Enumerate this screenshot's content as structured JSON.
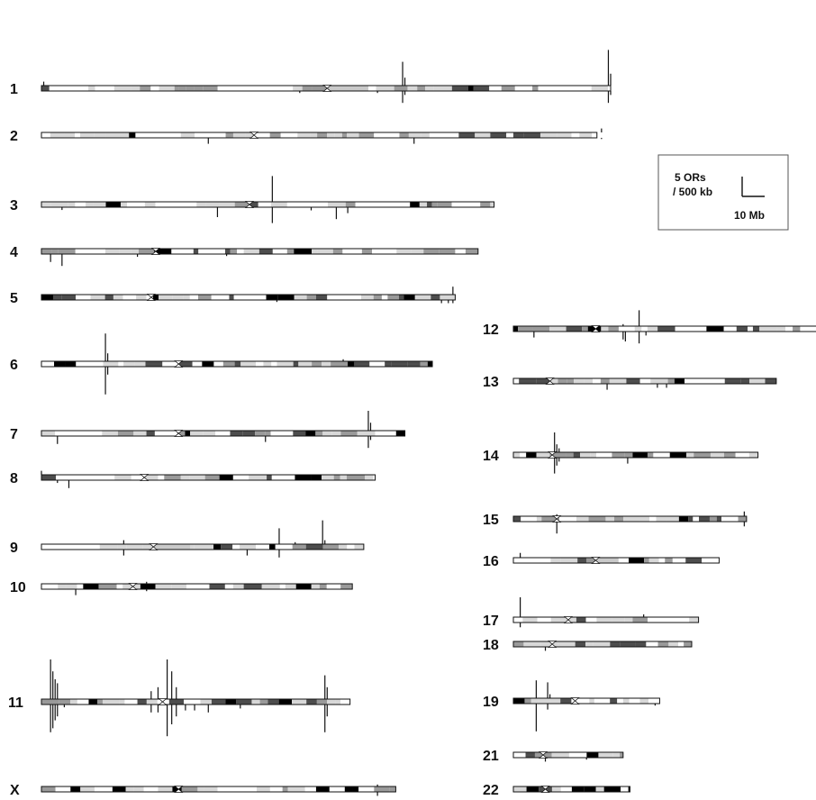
{
  "legend": {
    "line1": "5 ORs",
    "line2": "/ 500 kb",
    "scale_label": "10 Mb"
  },
  "chromosomes": [
    {
      "label": "1",
      "length_mb": 249,
      "centromere_mb": 125,
      "het_mb": [
        125,
        143
      ],
      "spikes": [
        {
          "pos_mb": 1,
          "up": 1,
          "down": 0
        },
        {
          "pos_mb": 113,
          "up": 0,
          "down": 0.5
        },
        {
          "pos_mb": 147,
          "up": 0,
          "down": 0.5
        },
        {
          "pos_mb": 158,
          "up": 6,
          "down": 3
        },
        {
          "pos_mb": 159,
          "up": 2,
          "down": 1
        },
        {
          "pos_mb": 248,
          "up": 9,
          "down": 3
        },
        {
          "pos_mb": 249,
          "up": 3,
          "down": 1
        }
      ]
    },
    {
      "label": "2",
      "length_mb": 243,
      "centromere_mb": 93,
      "het_mb": [],
      "spikes": [
        {
          "pos_mb": 73,
          "up": 0,
          "down": 1.5
        },
        {
          "pos_mb": 163,
          "up": 0,
          "down": 1.5
        },
        {
          "pos_mb": 245,
          "up": 1,
          "down": 0.3
        }
      ]
    },
    {
      "label": "3",
      "length_mb": 198,
      "centromere_mb": 91,
      "het_mb": [],
      "spikes": [
        {
          "pos_mb": 9,
          "up": 0,
          "down": 0.7
        },
        {
          "pos_mb": 77,
          "up": 0,
          "down": 2.5
        },
        {
          "pos_mb": 101,
          "up": 6.5,
          "down": 4
        },
        {
          "pos_mb": 118,
          "up": 0,
          "down": 0.8
        },
        {
          "pos_mb": 129,
          "up": 0,
          "down": 3
        },
        {
          "pos_mb": 134,
          "up": 0,
          "down": 1.5
        }
      ]
    },
    {
      "label": "4",
      "length_mb": 191,
      "centromere_mb": 50,
      "het_mb": [],
      "spikes": [
        {
          "pos_mb": 4,
          "up": 0,
          "down": 2
        },
        {
          "pos_mb": 9,
          "up": 0,
          "down": 3
        },
        {
          "pos_mb": 42,
          "up": 0,
          "down": 0.7
        },
        {
          "pos_mb": 81,
          "up": 0,
          "down": 0.5
        }
      ]
    },
    {
      "label": "5",
      "length_mb": 181,
      "centromere_mb": 48,
      "het_mb": [],
      "spikes": [
        {
          "pos_mb": 103,
          "up": 0,
          "down": 0.5
        },
        {
          "pos_mb": 175,
          "up": 0,
          "down": 0.8
        },
        {
          "pos_mb": 178,
          "up": 0,
          "down": 0.8
        },
        {
          "pos_mb": 180,
          "up": 2,
          "down": 0.8
        }
      ]
    },
    {
      "label": "6",
      "length_mb": 171,
      "centromere_mb": 60,
      "het_mb": [],
      "spikes": [
        {
          "pos_mb": 28,
          "up": 7,
          "down": 7
        },
        {
          "pos_mb": 29,
          "up": 2,
          "down": 2
        },
        {
          "pos_mb": 132,
          "up": 0.5,
          "down": 0
        }
      ]
    },
    {
      "label": "7",
      "length_mb": 159,
      "centromere_mb": 60,
      "het_mb": [],
      "spikes": [
        {
          "pos_mb": 7,
          "up": 0,
          "down": 2
        },
        {
          "pos_mb": 98,
          "up": 0,
          "down": 1.5
        },
        {
          "pos_mb": 143,
          "up": 5,
          "down": 3
        },
        {
          "pos_mb": 144,
          "up": 2,
          "down": 1
        }
      ]
    },
    {
      "label": "8",
      "length_mb": 146,
      "centromere_mb": 45,
      "het_mb": [],
      "spikes": [
        {
          "pos_mb": 0,
          "up": 1,
          "down": 0
        },
        {
          "pos_mb": 7,
          "up": 0,
          "down": 0.7
        },
        {
          "pos_mb": 12,
          "up": 0,
          "down": 2
        }
      ]
    },
    {
      "label": "9",
      "length_mb": 141,
      "centromere_mb": 49,
      "het_mb": [
        49,
        65
      ],
      "spikes": [
        {
          "pos_mb": 36,
          "up": 1,
          "down": 1.5
        },
        {
          "pos_mb": 90,
          "up": 0,
          "down": 1.5
        },
        {
          "pos_mb": 104,
          "up": 4,
          "down": 2
        },
        {
          "pos_mb": 111,
          "up": 0.5,
          "down": 0
        },
        {
          "pos_mb": 123,
          "up": 6,
          "down": 0
        },
        {
          "pos_mb": 124,
          "up": 1,
          "down": 0
        }
      ]
    },
    {
      "label": "10",
      "length_mb": 136,
      "centromere_mb": 40,
      "het_mb": [],
      "spikes": [
        {
          "pos_mb": 15,
          "up": 0,
          "down": 1.5
        },
        {
          "pos_mb": 46,
          "up": 0.5,
          "down": 0.5
        }
      ]
    },
    {
      "label": "11",
      "length_mb": 135,
      "centromere_mb": 53,
      "het_mb": [],
      "spikes": [
        {
          "pos_mb": 4,
          "up": 10,
          "down": 7
        },
        {
          "pos_mb": 5,
          "up": 7,
          "down": 6
        },
        {
          "pos_mb": 6,
          "up": 5,
          "down": 4
        },
        {
          "pos_mb": 7,
          "up": 4,
          "down": 3
        },
        {
          "pos_mb": 10,
          "up": 0,
          "down": 0.7
        },
        {
          "pos_mb": 48,
          "up": 2,
          "down": 2
        },
        {
          "pos_mb": 51,
          "up": 3,
          "down": 2
        },
        {
          "pos_mb": 55,
          "up": 10,
          "down": 8
        },
        {
          "pos_mb": 57,
          "up": 7,
          "down": 5
        },
        {
          "pos_mb": 59,
          "up": 3,
          "down": 3
        },
        {
          "pos_mb": 63,
          "up": 0,
          "down": 1.5
        },
        {
          "pos_mb": 67,
          "up": 0,
          "down": 1.5
        },
        {
          "pos_mb": 73,
          "up": 0,
          "down": 2
        },
        {
          "pos_mb": 87,
          "up": 0,
          "down": 1
        },
        {
          "pos_mb": 124,
          "up": 6,
          "down": 7
        },
        {
          "pos_mb": 125,
          "up": 3,
          "down": 3
        }
      ]
    },
    {
      "label": "12",
      "length_mb": 134,
      "centromere_mb": 36,
      "het_mb": [],
      "spikes": [
        {
          "pos_mb": 9,
          "up": 0,
          "down": 1.5
        },
        {
          "pos_mb": 48,
          "up": 0.5,
          "down": 2
        },
        {
          "pos_mb": 49,
          "up": 0,
          "down": 2.5
        },
        {
          "pos_mb": 55,
          "up": 4,
          "down": 3
        },
        {
          "pos_mb": 58,
          "up": 0,
          "down": 1
        }
      ]
    },
    {
      "label": "13",
      "length_mb": 115,
      "centromere_mb": 16,
      "het_mb": [],
      "spikes": [
        {
          "pos_mb": 41,
          "up": 0,
          "down": 1.5
        },
        {
          "pos_mb": 63,
          "up": 0,
          "down": 1
        },
        {
          "pos_mb": 67,
          "up": 0,
          "down": 1
        }
      ]
    },
    {
      "label": "14",
      "length_mb": 107,
      "centromere_mb": 17,
      "het_mb": [],
      "spikes": [
        {
          "pos_mb": 18,
          "up": 5,
          "down": 4
        },
        {
          "pos_mb": 19,
          "up": 2,
          "down": 2
        },
        {
          "pos_mb": 20,
          "up": 1,
          "down": 1
        },
        {
          "pos_mb": 50,
          "up": 0,
          "down": 1.5
        }
      ]
    },
    {
      "label": "15",
      "length_mb": 102,
      "centromere_mb": 19,
      "het_mb": [],
      "spikes": [
        {
          "pos_mb": 19,
          "up": 0.5,
          "down": 3
        },
        {
          "pos_mb": 101,
          "up": 1.2,
          "down": 1.2
        }
      ]
    },
    {
      "label": "16",
      "length_mb": 90,
      "centromere_mb": 36,
      "het_mb": [
        36,
        46
      ],
      "spikes": [
        {
          "pos_mb": 3,
          "up": 1.2,
          "down": 0
        }
      ]
    },
    {
      "label": "17",
      "length_mb": 81,
      "centromere_mb": 24,
      "het_mb": [],
      "spikes": [
        {
          "pos_mb": 3,
          "up": 5,
          "down": 1.2
        },
        {
          "pos_mb": 57,
          "up": 0.7,
          "down": 0
        }
      ]
    },
    {
      "label": "18",
      "length_mb": 78,
      "centromere_mb": 17,
      "het_mb": [],
      "spikes": [
        {
          "pos_mb": 14,
          "up": 0,
          "down": 1
        }
      ]
    },
    {
      "label": "19",
      "length_mb": 64,
      "centromere_mb": 27,
      "het_mb": [],
      "spikes": [
        {
          "pos_mb": 10,
          "up": 4.5,
          "down": 7
        },
        {
          "pos_mb": 15,
          "up": 4,
          "down": 1.5
        },
        {
          "pos_mb": 16,
          "up": 1,
          "down": 0
        },
        {
          "pos_mb": 62,
          "up": 0,
          "down": 0.5
        }
      ]
    },
    {
      "label": "21",
      "length_mb": 48,
      "centromere_mb": 13,
      "het_mb": [],
      "spikes": [
        {
          "pos_mb": 14,
          "up": 0,
          "down": 1
        },
        {
          "pos_mb": 32,
          "up": 0,
          "down": 0.5
        }
      ]
    },
    {
      "label": "22",
      "length_mb": 51,
      "centromere_mb": 14,
      "het_mb": [],
      "spikes": []
    },
    {
      "label": "X",
      "length_mb": 155,
      "centromere_mb": 60,
      "het_mb": [],
      "spikes": [
        {
          "pos_mb": 147,
          "up": 0.5,
          "down": 1
        }
      ]
    }
  ]
}
